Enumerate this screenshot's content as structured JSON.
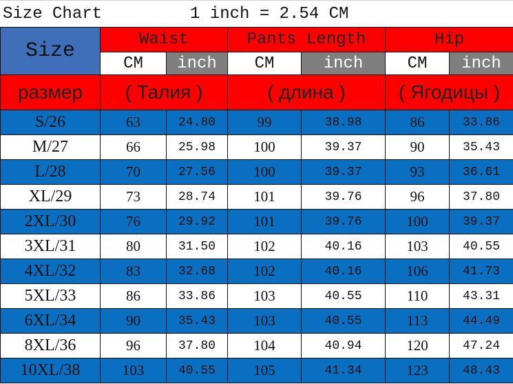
{
  "title": "Size Chart",
  "conversion": "1 inch = 2.54 CM",
  "header": {
    "size": "Size",
    "groups": [
      "Waist",
      "Pants Length",
      "Hip"
    ],
    "units": [
      "CM",
      "inch",
      "CM",
      "inch",
      "CM",
      "inch"
    ],
    "russian": [
      "размер",
      "( Талия )",
      "( длина )",
      "( Ягодицы )"
    ]
  },
  "colors": {
    "red": "#ff0000",
    "blue": "#0b6fc1",
    "gray": "#7f7f7f",
    "size_header": "#3f6fb8"
  },
  "rows": [
    [
      "S/26",
      "63",
      "24.80",
      "99",
      "38.98",
      "86",
      "33.86"
    ],
    [
      "M/27",
      "66",
      "25.98",
      "100",
      "39.37",
      "90",
      "35.43"
    ],
    [
      "L/28",
      "70",
      "27.56",
      "100",
      "39.37",
      "93",
      "36.61"
    ],
    [
      "XL/29",
      "73",
      "28.74",
      "101",
      "39.76",
      "96",
      "37.80"
    ],
    [
      "2XL/30",
      "76",
      "29.92",
      "101",
      "39.76",
      "100",
      "39.37"
    ],
    [
      "3XL/31",
      "80",
      "31.50",
      "102",
      "40.16",
      "103",
      "40.55"
    ],
    [
      "4XL/32",
      "83",
      "32.68",
      "102",
      "40.16",
      "106",
      "41.73"
    ],
    [
      "5XL/33",
      "86",
      "33.86",
      "103",
      "40.55",
      "110",
      "43.31"
    ],
    [
      "6XL/34",
      "90",
      "35.43",
      "103",
      "40.55",
      "113",
      "44.49"
    ],
    [
      "8XL/36",
      "96",
      "37.80",
      "104",
      "40.94",
      "120",
      "47.24"
    ],
    [
      "10XL/38",
      "103",
      "40.55",
      "105",
      "41.34",
      "123",
      "48.43"
    ]
  ]
}
